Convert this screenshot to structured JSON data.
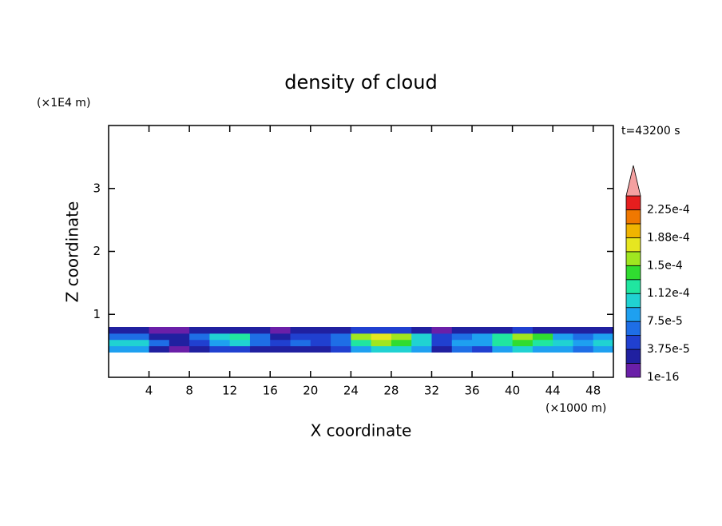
{
  "chart_data": {
    "type": "contour",
    "title": "density of cloud",
    "xlabel": "X coordinate",
    "ylabel": "Z coordinate",
    "x_unit": "(×1000 m)",
    "y_unit": "(×1E4 m)",
    "time_label": "t=43200 s",
    "xlim": [
      0,
      50
    ],
    "ylim": [
      0,
      4
    ],
    "xticks": [
      4,
      8,
      12,
      16,
      20,
      24,
      28,
      32,
      36,
      40,
      44,
      48
    ],
    "yticks": [
      1,
      2,
      3
    ],
    "x": [
      1,
      3,
      5,
      7,
      9,
      11,
      13,
      15,
      17,
      19,
      21,
      23,
      25,
      27,
      29,
      31,
      33,
      35,
      37,
      39,
      41,
      43,
      45,
      47,
      49
    ],
    "z": [
      0.45,
      0.55,
      0.65,
      0.75
    ],
    "values": [
      [
        8e-05,
        9e-05,
        2e-05,
        1e-05,
        2e-05,
        4e-05,
        5e-05,
        3e-05,
        2e-05,
        3e-05,
        2e-05,
        4e-05,
        9e-05,
        0.0001,
        0.00011,
        8e-05,
        2e-05,
        6e-05,
        5e-05,
        9e-05,
        0.0001,
        9e-05,
        8e-05,
        7e-05,
        8e-05
      ],
      [
        0.0001,
        0.00011,
        6e-05,
        3e-05,
        5e-05,
        9e-05,
        0.0001,
        6e-05,
        4e-05,
        6e-05,
        4e-05,
        7e-05,
        0.00013,
        0.00015,
        0.00014,
        0.00011,
        5e-05,
        9e-05,
        9e-05,
        0.00013,
        0.00014,
        0.00013,
        0.0001,
        9e-05,
        0.0001
      ],
      [
        7e-05,
        6e-05,
        3e-05,
        2e-05,
        6e-05,
        0.00011,
        0.00012,
        7e-05,
        3e-05,
        5e-05,
        4e-05,
        6e-05,
        0.00015,
        0.00017,
        0.00015,
        0.0001,
        4e-05,
        7e-05,
        8e-05,
        0.00013,
        0.00016,
        0.00014,
        9e-05,
        6e-05,
        8e-05
      ],
      [
        2e-05,
        2e-05,
        1e-05,
        1e-05,
        2e-05,
        3e-05,
        3e-05,
        2e-05,
        1e-05,
        2e-05,
        2e-05,
        2e-05,
        4e-05,
        5e-05,
        4e-05,
        3e-05,
        1e-05,
        2e-05,
        2e-05,
        3e-05,
        4e-05,
        3e-05,
        2e-05,
        2e-05,
        2e-05
      ]
    ],
    "levels": [
      1e-16,
      1.875e-05,
      {
        "value": 3.75e-05,
        "label": "3.75e-5"
      },
      5.625e-05,
      {
        "value": 7.5e-05,
        "label": "7.5e-5"
      },
      9.375e-05,
      {
        "value": 0.0001125,
        "label": "1.12e-4"
      },
      0.00013125,
      {
        "value": 0.00015,
        "label": "1.5e-4"
      },
      0.00016875,
      {
        "value": 0.0001875,
        "label": "1.88e-4"
      },
      0.00020625,
      {
        "value": 0.000225,
        "label": "2.25e-4"
      },
      0.00024375
    ],
    "labeled_levels": [
      0,
      2,
      4,
      6,
      8,
      10,
      12
    ],
    "colors": [
      "#6a1fa8",
      "#2020a0",
      "#2040d0",
      "#1e6ee6",
      "#1ea0f0",
      "#20d2d2",
      "#20e6a0",
      "#30dc30",
      "#a0e620",
      "#e6e620",
      "#f0b400",
      "#f07800",
      "#e61e1e"
    ],
    "over_color": "#f4a0a0"
  }
}
